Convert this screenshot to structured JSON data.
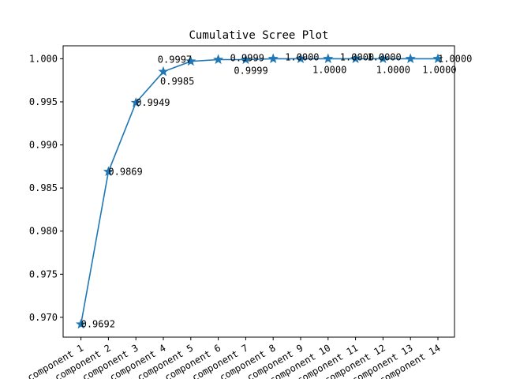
{
  "chart_data": {
    "type": "line",
    "title": "Cumulative Scree Plot",
    "xlabel": "",
    "ylabel": "",
    "categories": [
      "component 1",
      "component 2",
      "component 3",
      "component 4",
      "component 5",
      "component 6",
      "component 7",
      "component 8",
      "component 9",
      "component 10",
      "component 11",
      "component 12",
      "component 13",
      "component 14"
    ],
    "values": [
      0.9692,
      0.9869,
      0.9949,
      0.9985,
      0.9997,
      0.9999,
      0.9999,
      1.0,
      1.0,
      1.0,
      1.0,
      1.0,
      1.0,
      1.0
    ],
    "data_labels": [
      "0.9692",
      "0.9869",
      "0.9949",
      "0.9985",
      "0.9997",
      "0.9999",
      "0.9999",
      "1.0000",
      "1.0000",
      "1.0000",
      "1.0000",
      "1.0000",
      "1.0000",
      "1.0000"
    ],
    "ylim": [
      0.9677,
      1.0015
    ],
    "yticks": [
      0.97,
      0.975,
      0.98,
      0.985,
      0.99,
      0.995,
      1.0
    ],
    "ytick_labels": [
      "0.970",
      "0.975",
      "0.980",
      "0.985",
      "0.990",
      "0.995",
      "1.000"
    ],
    "marker": "star",
    "line_color": "#1f77b4",
    "grid": false,
    "legend": "none"
  }
}
